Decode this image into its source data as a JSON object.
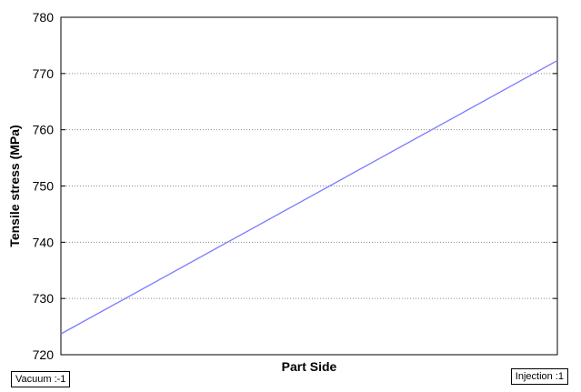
{
  "chart_data": {
    "type": "line",
    "title": "",
    "xlabel": "Part Side",
    "ylabel": "Tensile stress (MPa)",
    "ylim": [
      720,
      780
    ],
    "yticks": [
      720,
      730,
      740,
      750,
      760,
      770,
      780
    ],
    "xlim": [
      -1,
      1
    ],
    "x": [
      -1,
      1
    ],
    "series": [
      {
        "values": [
          723.7,
          772.3
        ]
      }
    ],
    "x_levels": {
      "low": "Vacuum :-1",
      "high": "Injection :1"
    },
    "grid": "horizontal dotted",
    "colors": {
      "line": "#7b7bff",
      "grid": "#8a8a8a",
      "axes": "#000000"
    }
  }
}
